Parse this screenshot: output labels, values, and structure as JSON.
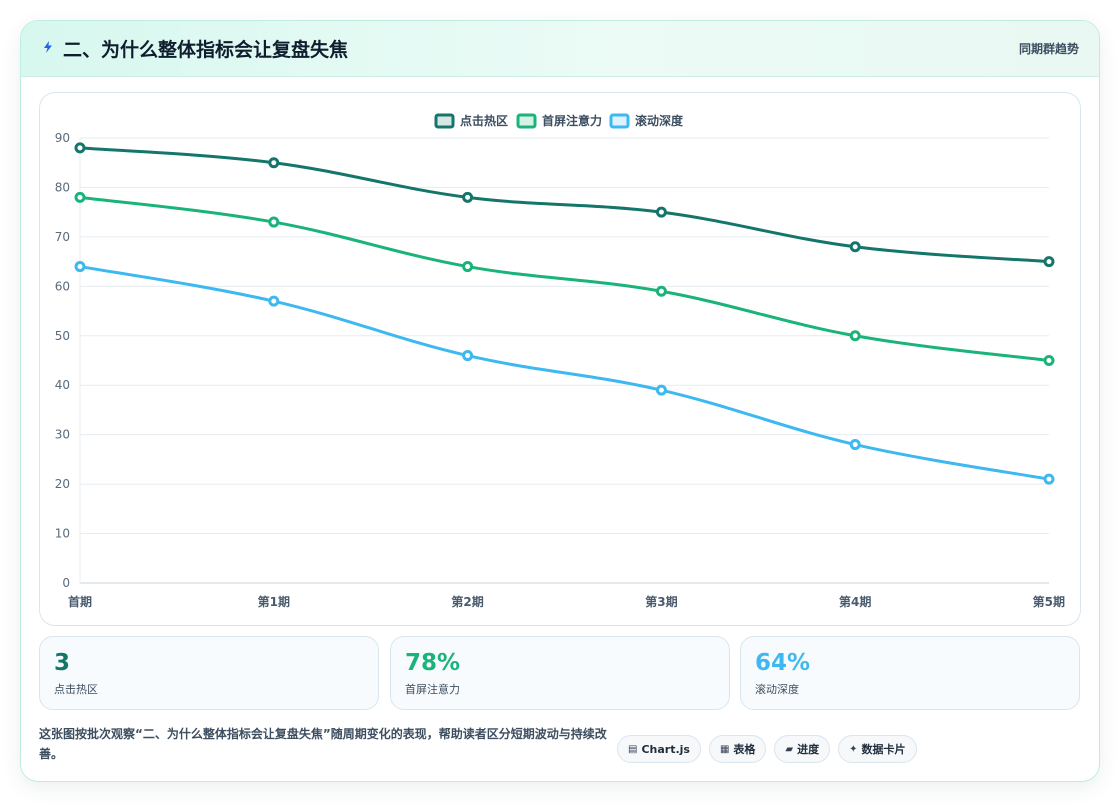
{
  "header": {
    "title": "二、为什么整体指标会让复盘失焦",
    "right_label": "同期群趋势",
    "icon": "bolt-icon"
  },
  "chart_data": {
    "type": "line",
    "categories": [
      "首期",
      "第1期",
      "第2期",
      "第3期",
      "第4期",
      "第5期"
    ],
    "series": [
      {
        "name": "点击热区",
        "values": [
          88,
          85,
          78,
          75,
          68,
          65
        ],
        "color": "#14756a"
      },
      {
        "name": "首屏注意力",
        "values": [
          78,
          73,
          64,
          59,
          50,
          45
        ],
        "color": "#1ab37a"
      },
      {
        "name": "滚动深度",
        "values": [
          64,
          57,
          46,
          39,
          28,
          21
        ],
        "color": "#3db8f0"
      }
    ],
    "ylim": [
      0,
      90
    ],
    "yticks": [
      0,
      10,
      20,
      30,
      40,
      50,
      60,
      70,
      80,
      90
    ],
    "grid": true,
    "legend": "top-center"
  },
  "stats": [
    {
      "value": "3",
      "label": "点击热区",
      "color": "#14756a"
    },
    {
      "value": "78%",
      "label": "首屏注意力",
      "color": "#1ab37a"
    },
    {
      "value": "64%",
      "label": "滚动深度",
      "color": "#3db8f0"
    }
  ],
  "footer": {
    "description": "这张图按批次观察“二、为什么整体指标会让复盘失焦”随周期变化的表现，帮助读者区分短期波动与持续改善。",
    "chips": [
      {
        "icon": "▤",
        "label": "Chart.js"
      },
      {
        "icon": "▦",
        "label": "表格"
      },
      {
        "icon": "▰",
        "label": "进度"
      },
      {
        "icon": "✦",
        "label": "数据卡片"
      }
    ]
  }
}
